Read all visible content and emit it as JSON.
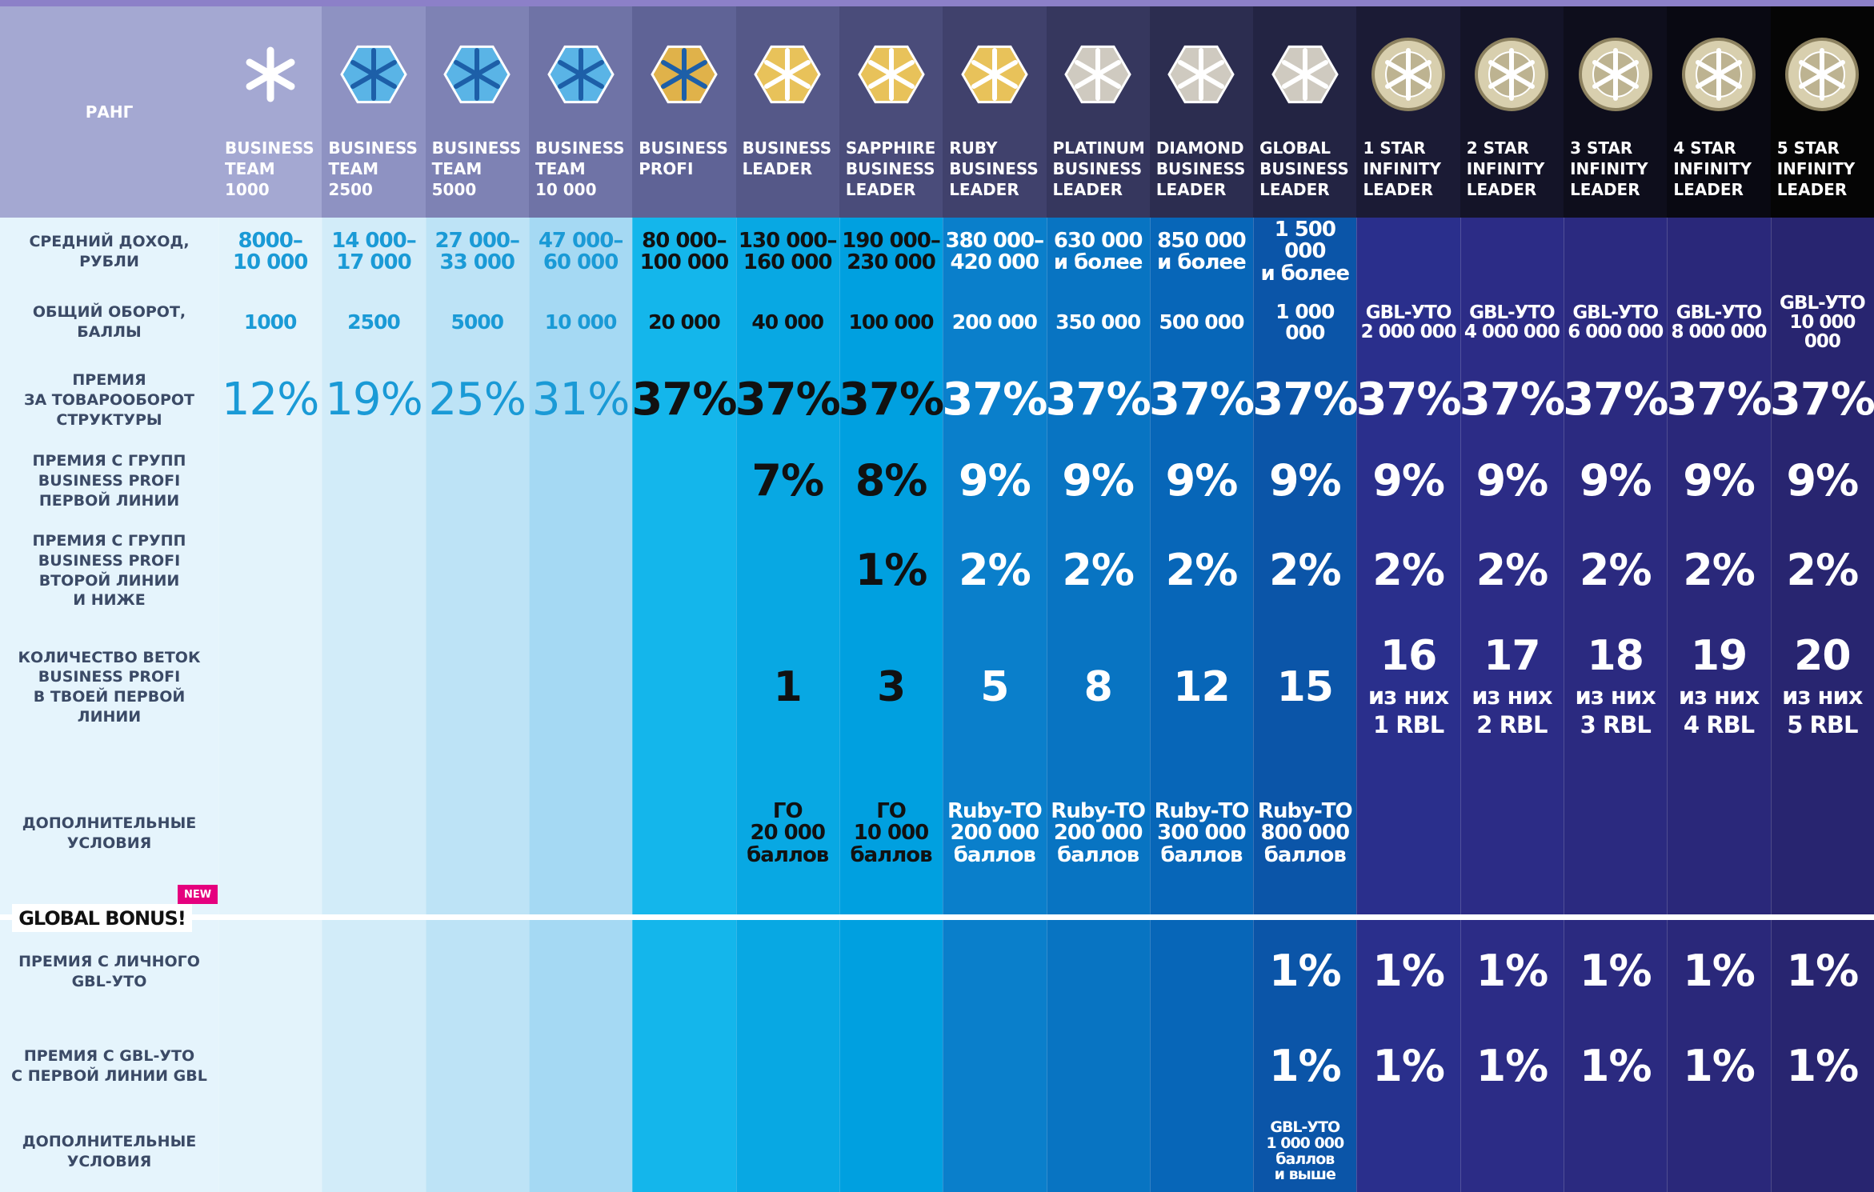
{
  "header": {
    "rank_label": "РАНГ"
  },
  "ranks": [
    {
      "name": "BUSINESS\nTEAM\n1000"
    },
    {
      "name": "BUSINESS\nTEAM\n2500"
    },
    {
      "name": "BUSINESS\nTEAM\n5000"
    },
    {
      "name": "BUSINESS\nTEAM\n10 000"
    },
    {
      "name": "BUSINESS\nPROFI"
    },
    {
      "name": "BUSINESS\nLEADER"
    },
    {
      "name": "SAPPHIRE\nBUSINESS\nLEADER"
    },
    {
      "name": "RUBY\nBUSINESS\nLEADER"
    },
    {
      "name": "PLATINUM\nBUSINESS\nLEADER"
    },
    {
      "name": "DIAMOND\nBUSINESS\nLEADER"
    },
    {
      "name": "GLOBAL\nBUSINESS\nLEADER"
    },
    {
      "name": "1 STAR\nINFINITY\nLEADER"
    },
    {
      "name": "2 STAR\nINFINITY\nLEADER"
    },
    {
      "name": "3 STAR\nINFINITY\nLEADER"
    },
    {
      "name": "4 STAR\nINFINITY\nLEADER"
    },
    {
      "name": "5 STAR\nINFINITY\nLEADER"
    }
  ],
  "rows": [
    {
      "label": "СРЕДНИЙ ДОХОД,\nРУБЛИ",
      "cells": [
        "8000–\n10 000",
        "14 000–\n17 000",
        "27 000–\n33 000",
        "47 000–\n60 000",
        "80 000–\n100 000",
        "130 000–\n160 000",
        "190 000–\n230 000",
        "380 000–\n420 000",
        "630 000\nи более",
        "850 000\nи более",
        "1 500 000\nи более",
        null,
        null,
        null,
        null,
        null
      ]
    },
    {
      "label": "ОБЩИЙ ОБОРОТ,\nБАЛЛЫ",
      "cells": [
        "1000",
        "2500",
        "5000",
        "10 000",
        "20 000",
        "40 000",
        "100 000",
        "200 000",
        "350 000",
        "500 000",
        "1 000 000",
        "GBL-УТО\n2 000 000",
        "GBL-УТО\n4 000 000",
        "GBL-УТО\n6 000 000",
        "GBL-УТО\n8 000 000",
        "GBL-УТО\n10 000 000"
      ]
    },
    {
      "label": "ПРЕМИЯ\nЗА ТОВАРООБОРОТ\nСТРУКТУРЫ",
      "cells": [
        "12%",
        "19%",
        "25%",
        "31%",
        "37%",
        "37%",
        "37%",
        "37%",
        "37%",
        "37%",
        "37%",
        "37%",
        "37%",
        "37%",
        "37%",
        "37%"
      ]
    },
    {
      "label": "ПРЕМИЯ С ГРУПП\nBUSINESS PROFI\nПЕРВОЙ ЛИНИИ",
      "cells": [
        null,
        null,
        null,
        null,
        null,
        "7%",
        "8%",
        "9%",
        "9%",
        "9%",
        "9%",
        "9%",
        "9%",
        "9%",
        "9%",
        "9%"
      ]
    },
    {
      "label": "ПРЕМИЯ С ГРУПП\nBUSINESS PROFI\nВТОРОЙ ЛИНИИ\nИ НИЖЕ",
      "cells": [
        null,
        null,
        null,
        null,
        null,
        null,
        "1%",
        "2%",
        "2%",
        "2%",
        "2%",
        "2%",
        "2%",
        "2%",
        "2%",
        "2%"
      ]
    },
    {
      "label": "КОЛИЧЕСТВО ВЕТОК\nBUSINESS PROFI\nВ ТВОЕЙ ПЕРВОЙ\nЛИНИИ",
      "cells": [
        null,
        null,
        null,
        null,
        null,
        "1",
        "3",
        "5",
        "8",
        "12",
        "15",
        "16",
        "17",
        "18",
        "19",
        "20"
      ],
      "notes": [
        null,
        null,
        null,
        null,
        null,
        null,
        null,
        null,
        null,
        null,
        null,
        "из них\n1 RBL",
        "из них\n2 RBL",
        "из них\n3 RBL",
        "из них\n4 RBL",
        "из них\n5 RBL"
      ]
    },
    {
      "label": "ДОПОЛНИТЕЛЬНЫЕ\nУСЛОВИЯ",
      "cells": [
        null,
        null,
        null,
        null,
        null,
        "ГО\n20 000\nбаллов",
        "ГО\n10 000\nбаллов",
        "Ruby-ТО\n200 000\nбаллов",
        "Ruby-ТО\n200 000\nбаллов",
        "Ruby-ТО\n300 000\nбаллов",
        "Ruby-ТО\n800 000\nбаллов",
        null,
        null,
        null,
        null,
        null
      ]
    }
  ],
  "global_bonus": {
    "title": "GLOBAL BONUS!",
    "badge": "NEW",
    "rows": [
      {
        "label": "ПРЕМИЯ С ЛИЧНОГО\nGBL-УТО",
        "cells": [
          null,
          null,
          null,
          null,
          null,
          null,
          null,
          null,
          null,
          null,
          "1%",
          "1%",
          "1%",
          "1%",
          "1%",
          "1%"
        ]
      },
      {
        "label": "ПРЕМИЯ С GBL-УТО\nС ПЕРВОЙ ЛИНИИ GBL",
        "cells": [
          null,
          null,
          null,
          null,
          null,
          null,
          null,
          null,
          null,
          null,
          "1%",
          "1%",
          "1%",
          "1%",
          "1%",
          "1%"
        ]
      },
      {
        "label": "ДОПОЛНИТЕЛЬНЫЕ\nУСЛОВИЯ",
        "cells": [
          null,
          null,
          null,
          null,
          null,
          null,
          null,
          null,
          null,
          null,
          "GBL-УТО\n1 000 000\nбаллов\nи выше",
          null,
          null,
          null,
          null,
          null
        ]
      }
    ]
  }
}
